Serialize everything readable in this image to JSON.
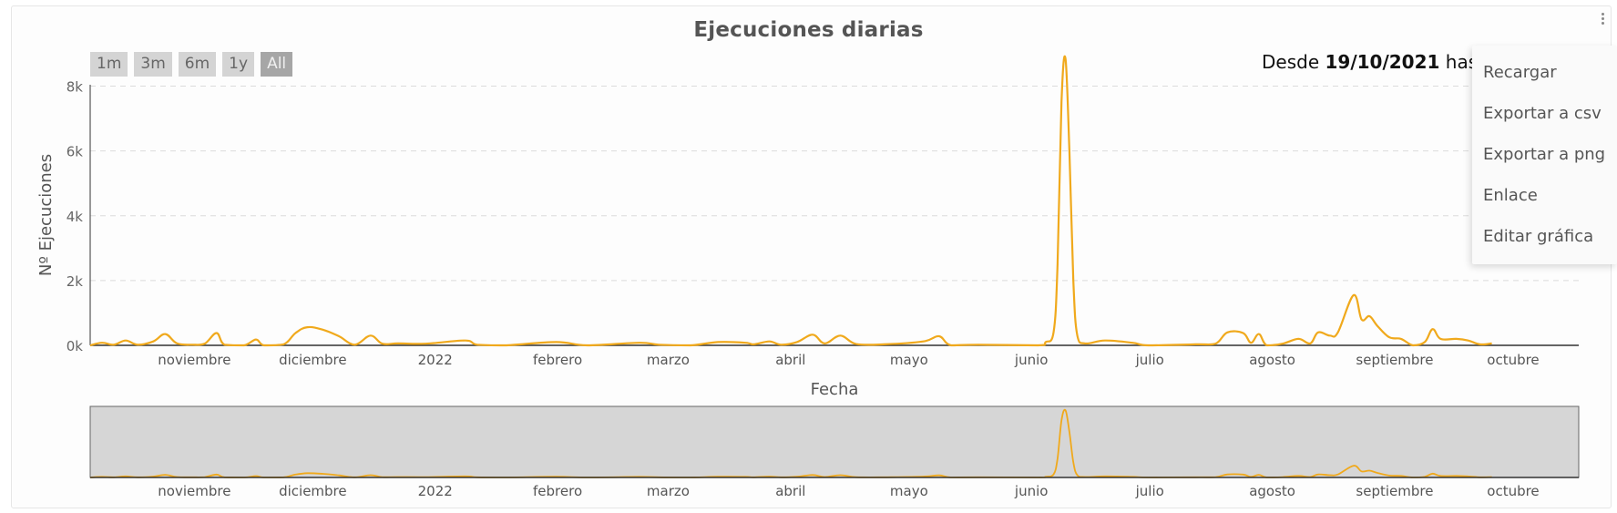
{
  "chart_data": {
    "type": "line",
    "title": "Ejecuciones diarias",
    "xlabel": "Fecha",
    "ylabel": "Nº Ejecuciones",
    "y_ticks": [
      "0k",
      "2k",
      "4k",
      "6k",
      "8k"
    ],
    "ylim": [
      0,
      9000
    ],
    "x_range": [
      "2021-10-19",
      "2022-10-31"
    ],
    "x_tick_labels": [
      {
        "date": "2021-11-01",
        "label": "noviembre"
      },
      {
        "date": "2021-12-01",
        "label": "diciembre"
      },
      {
        "date": "2022-01-01",
        "label": "2022"
      },
      {
        "date": "2022-02-01",
        "label": "febrero"
      },
      {
        "date": "2022-03-01",
        "label": "marzo"
      },
      {
        "date": "2022-04-01",
        "label": "abril"
      },
      {
        "date": "2022-05-01",
        "label": "mayo"
      },
      {
        "date": "2022-06-01",
        "label": "junio"
      },
      {
        "date": "2022-07-01",
        "label": "julio"
      },
      {
        "date": "2022-08-01",
        "label": "agosto"
      },
      {
        "date": "2022-09-01",
        "label": "septiembre"
      },
      {
        "date": "2022-10-01",
        "label": "octubre"
      }
    ],
    "grid": true,
    "line_color": "#f0a91c",
    "series": [
      {
        "points": [
          [
            "2021-10-19",
            0
          ],
          [
            "2021-10-22",
            80
          ],
          [
            "2021-10-25",
            20
          ],
          [
            "2021-10-28",
            150
          ],
          [
            "2021-10-31",
            20
          ],
          [
            "2021-11-04",
            120
          ],
          [
            "2021-11-07",
            350
          ],
          [
            "2021-11-10",
            60
          ],
          [
            "2021-11-14",
            20
          ],
          [
            "2021-11-17",
            50
          ],
          [
            "2021-11-20",
            380
          ],
          [
            "2021-11-22",
            20
          ],
          [
            "2021-11-27",
            0
          ],
          [
            "2021-11-30",
            180
          ],
          [
            "2021-12-02",
            0
          ],
          [
            "2021-12-07",
            30
          ],
          [
            "2021-12-10",
            380
          ],
          [
            "2021-12-13",
            560
          ],
          [
            "2021-12-17",
            480
          ],
          [
            "2021-12-21",
            280
          ],
          [
            "2021-12-25",
            20
          ],
          [
            "2021-12-29",
            300
          ],
          [
            "2022-01-01",
            50
          ],
          [
            "2022-01-05",
            60
          ],
          [
            "2022-01-12",
            50
          ],
          [
            "2022-01-22",
            150
          ],
          [
            "2022-01-25",
            20
          ],
          [
            "2022-02-01",
            0
          ],
          [
            "2022-02-14",
            100
          ],
          [
            "2022-02-22",
            0
          ],
          [
            "2022-03-07",
            80
          ],
          [
            "2022-03-12",
            20
          ],
          [
            "2022-03-20",
            0
          ],
          [
            "2022-03-27",
            100
          ],
          [
            "2022-04-03",
            80
          ],
          [
            "2022-04-05",
            30
          ],
          [
            "2022-04-09",
            120
          ],
          [
            "2022-04-12",
            20
          ],
          [
            "2022-04-16",
            100
          ],
          [
            "2022-04-20",
            330
          ],
          [
            "2022-04-23",
            60
          ],
          [
            "2022-04-27",
            300
          ],
          [
            "2022-05-01",
            40
          ],
          [
            "2022-05-08",
            30
          ],
          [
            "2022-05-18",
            120
          ],
          [
            "2022-05-22",
            280
          ],
          [
            "2022-05-25",
            0
          ],
          [
            "2022-06-01",
            20
          ],
          [
            "2022-06-16",
            0
          ],
          [
            "2022-06-18",
            100
          ],
          [
            "2022-06-20",
            400
          ],
          [
            "2022-06-21",
            2500
          ],
          [
            "2022-06-22",
            7500
          ],
          [
            "2022-06-23",
            8850
          ],
          [
            "2022-06-24",
            6000
          ],
          [
            "2022-06-25",
            2000
          ],
          [
            "2022-06-26",
            300
          ],
          [
            "2022-06-28",
            60
          ],
          [
            "2022-07-03",
            150
          ],
          [
            "2022-07-10",
            80
          ],
          [
            "2022-07-14",
            0
          ],
          [
            "2022-07-26",
            30
          ],
          [
            "2022-07-31",
            50
          ],
          [
            "2022-08-03",
            400
          ],
          [
            "2022-08-07",
            380
          ],
          [
            "2022-08-09",
            80
          ],
          [
            "2022-08-11",
            350
          ],
          [
            "2022-08-13",
            0
          ],
          [
            "2022-08-17",
            50
          ],
          [
            "2022-08-21",
            200
          ],
          [
            "2022-08-24",
            60
          ],
          [
            "2022-08-26",
            400
          ],
          [
            "2022-08-29",
            300
          ],
          [
            "2022-08-31",
            400
          ],
          [
            "2022-09-04",
            1550
          ],
          [
            "2022-09-06",
            800
          ],
          [
            "2022-09-08",
            900
          ],
          [
            "2022-09-10",
            600
          ],
          [
            "2022-09-13",
            250
          ],
          [
            "2022-09-16",
            200
          ],
          [
            "2022-09-19",
            0
          ],
          [
            "2022-09-22",
            100
          ],
          [
            "2022-09-24",
            500
          ],
          [
            "2022-09-26",
            200
          ],
          [
            "2022-09-30",
            200
          ],
          [
            "2022-10-03",
            150
          ],
          [
            "2022-10-06",
            30
          ],
          [
            "2022-10-09",
            60
          ]
        ]
      }
    ]
  },
  "range_buttons": [
    "1m",
    "3m",
    "6m",
    "1y",
    "All"
  ],
  "range_selected": "All",
  "date_range": {
    "prefix": "Desde",
    "from": "19/10/2021",
    "suffix": "hasta"
  },
  "menu": {
    "items": [
      "Recargar",
      "Exportar a csv",
      "Exportar a png",
      "Enlace",
      "Editar gráfica"
    ]
  }
}
